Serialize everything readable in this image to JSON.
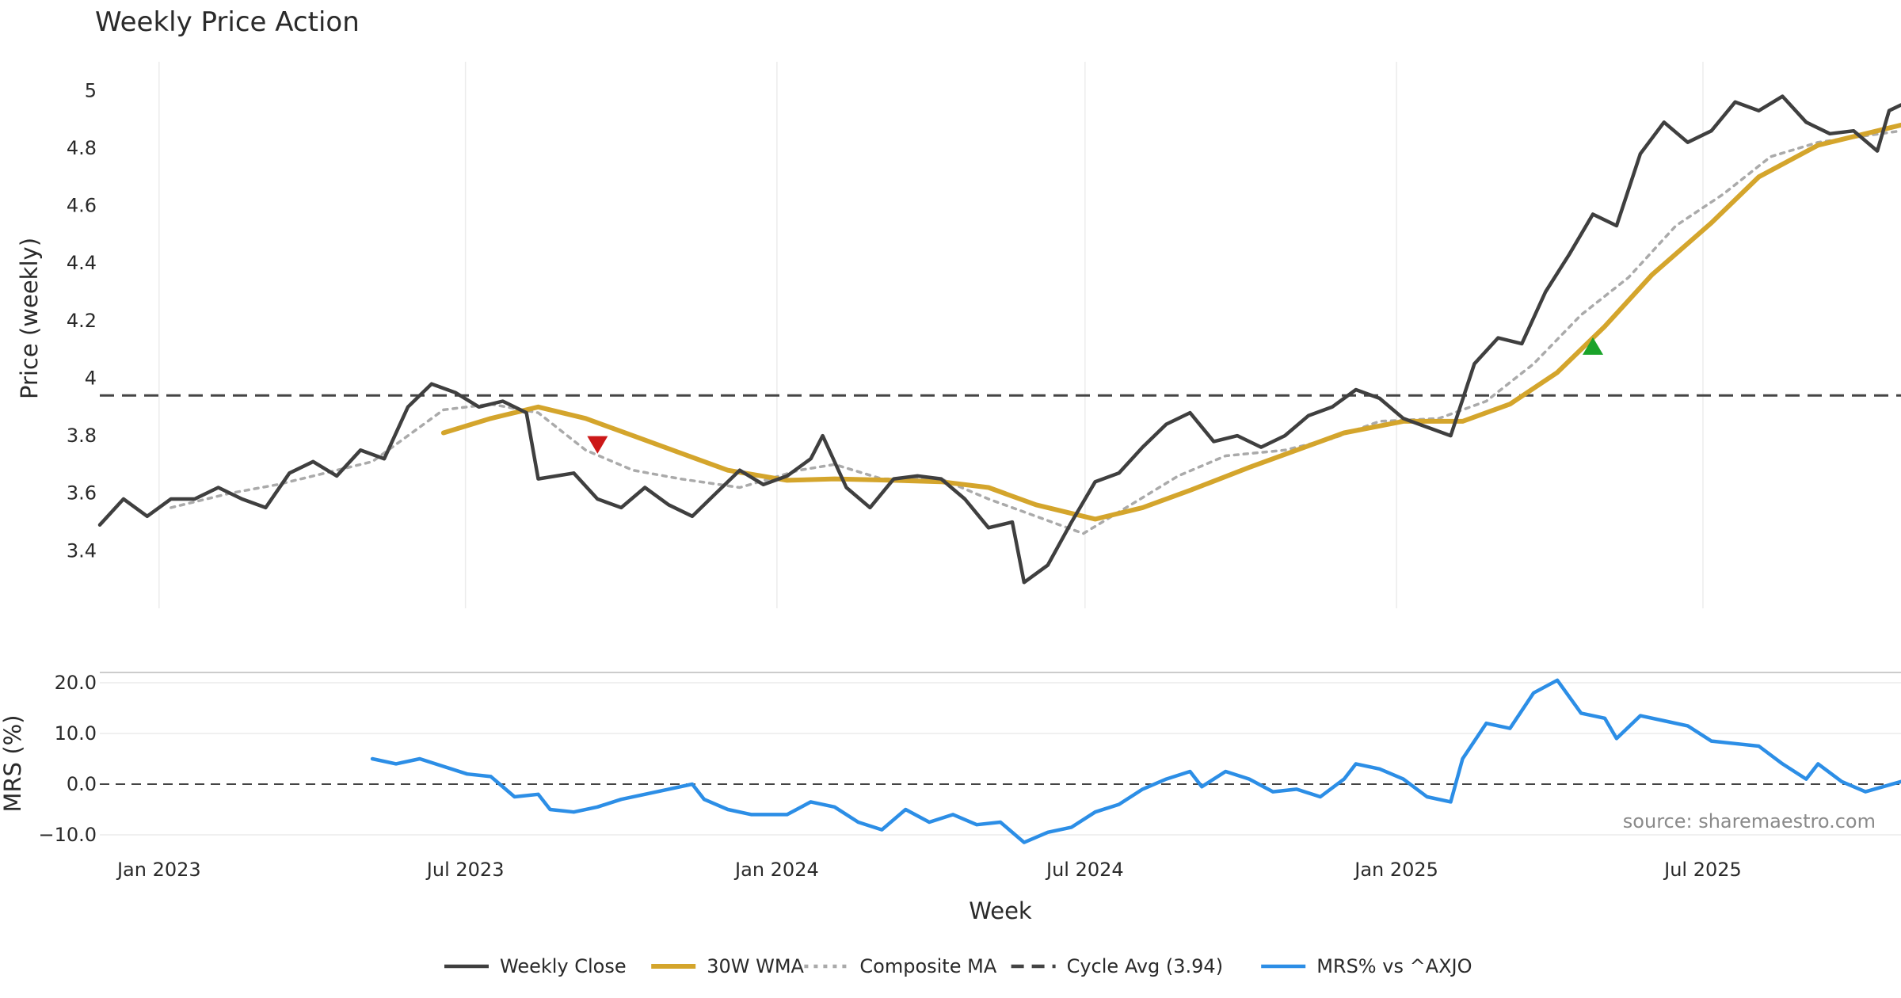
{
  "title": "Weekly Price Action",
  "source_note": "source: sharemaestro.com",
  "colors": {
    "close": "#3f3f3f",
    "wma": "#d4a52c",
    "composite": "#aaaaaa",
    "cycle": "#444444",
    "mrs": "#2c8ee6",
    "sell_marker": "#cc1818",
    "buy_marker": "#1aa32a",
    "grid": "#ececec"
  },
  "chart_data": [
    {
      "type": "line",
      "title": "Weekly Price Action",
      "ylabel": "Price (weekly)",
      "xlabel": "",
      "ylim": [
        3.2,
        5.1
      ],
      "yticks": [
        3.4,
        3.6,
        3.8,
        4,
        4.2,
        4.4,
        4.6,
        4.8,
        5
      ],
      "ytick_labels": [
        "3.4",
        "3.6",
        "3.8",
        "4",
        "4.2",
        "4.4",
        "4.6",
        "4.8",
        "5"
      ],
      "xlim": [
        "2022-11-27",
        "2025-10-26"
      ],
      "grid": "vertical",
      "series": [
        {
          "name": "Weekly Close",
          "style": "solid",
          "points": [
            [
              "2022-11-27",
              3.49
            ],
            [
              "2022-12-11",
              3.58
            ],
            [
              "2022-12-25",
              3.52
            ],
            [
              "2023-01-08",
              3.58
            ],
            [
              "2023-01-22",
              3.58
            ],
            [
              "2023-02-05",
              3.62
            ],
            [
              "2023-02-19",
              3.58
            ],
            [
              "2023-03-05",
              3.55
            ],
            [
              "2023-03-19",
              3.67
            ],
            [
              "2023-04-02",
              3.71
            ],
            [
              "2023-04-16",
              3.66
            ],
            [
              "2023-04-30",
              3.75
            ],
            [
              "2023-05-14",
              3.72
            ],
            [
              "2023-05-28",
              3.9
            ],
            [
              "2023-06-11",
              3.98
            ],
            [
              "2023-06-25",
              3.95
            ],
            [
              "2023-07-09",
              3.9
            ],
            [
              "2023-07-23",
              3.92
            ],
            [
              "2023-08-06",
              3.88
            ],
            [
              "2023-08-13",
              3.65
            ],
            [
              "2023-09-03",
              3.67
            ],
            [
              "2023-09-17",
              3.58
            ],
            [
              "2023-10-01",
              3.55
            ],
            [
              "2023-10-15",
              3.62
            ],
            [
              "2023-10-29",
              3.56
            ],
            [
              "2023-11-12",
              3.52
            ],
            [
              "2023-11-26",
              3.6
            ],
            [
              "2023-12-10",
              3.68
            ],
            [
              "2023-12-24",
              3.63
            ],
            [
              "2024-01-07",
              3.66
            ],
            [
              "2024-01-21",
              3.72
            ],
            [
              "2024-01-28",
              3.8
            ],
            [
              "2024-02-11",
              3.62
            ],
            [
              "2024-02-25",
              3.55
            ],
            [
              "2024-03-10",
              3.65
            ],
            [
              "2024-03-24",
              3.66
            ],
            [
              "2024-04-07",
              3.65
            ],
            [
              "2024-04-21",
              3.58
            ],
            [
              "2024-05-05",
              3.48
            ],
            [
              "2024-05-19",
              3.5
            ],
            [
              "2024-05-26",
              3.29
            ],
            [
              "2024-06-09",
              3.35
            ],
            [
              "2024-06-23",
              3.5
            ],
            [
              "2024-07-07",
              3.64
            ],
            [
              "2024-07-21",
              3.67
            ],
            [
              "2024-08-04",
              3.76
            ],
            [
              "2024-08-18",
              3.84
            ],
            [
              "2024-09-01",
              3.88
            ],
            [
              "2024-09-15",
              3.78
            ],
            [
              "2024-09-29",
              3.8
            ],
            [
              "2024-10-13",
              3.76
            ],
            [
              "2024-10-27",
              3.8
            ],
            [
              "2024-11-10",
              3.87
            ],
            [
              "2024-11-24",
              3.9
            ],
            [
              "2024-12-08",
              3.96
            ],
            [
              "2024-12-22",
              3.93
            ],
            [
              "2025-01-05",
              3.86
            ],
            [
              "2025-01-19",
              3.83
            ],
            [
              "2025-02-02",
              3.8
            ],
            [
              "2025-02-16",
              4.05
            ],
            [
              "2025-03-02",
              4.14
            ],
            [
              "2025-03-16",
              4.12
            ],
            [
              "2025-03-30",
              4.3
            ],
            [
              "2025-04-13",
              4.43
            ],
            [
              "2025-04-27",
              4.57
            ],
            [
              "2025-05-11",
              4.53
            ],
            [
              "2025-05-25",
              4.78
            ],
            [
              "2025-06-08",
              4.89
            ],
            [
              "2025-06-22",
              4.82
            ],
            [
              "2025-07-06",
              4.86
            ],
            [
              "2025-07-20",
              4.96
            ],
            [
              "2025-08-03",
              4.93
            ],
            [
              "2025-08-17",
              4.98
            ],
            [
              "2025-08-31",
              4.89
            ],
            [
              "2025-09-14",
              4.85
            ],
            [
              "2025-09-28",
              4.86
            ],
            [
              "2025-10-12",
              4.79
            ],
            [
              "2025-10-19",
              4.93
            ],
            [
              "2025-10-26",
              4.95
            ]
          ]
        },
        {
          "name": "30W WMA",
          "style": "solid-thick",
          "points": [
            [
              "2023-06-18",
              3.81
            ],
            [
              "2023-07-16",
              3.86
            ],
            [
              "2023-08-13",
              3.9
            ],
            [
              "2023-09-10",
              3.86
            ],
            [
              "2023-10-08",
              3.8
            ],
            [
              "2023-11-05",
              3.74
            ],
            [
              "2023-12-03",
              3.68
            ],
            [
              "2024-01-07",
              3.645
            ],
            [
              "2024-02-04",
              3.65
            ],
            [
              "2024-03-10",
              3.645
            ],
            [
              "2024-04-07",
              3.64
            ],
            [
              "2024-05-05",
              3.62
            ],
            [
              "2024-06-02",
              3.56
            ],
            [
              "2024-07-07",
              3.51
            ],
            [
              "2024-08-04",
              3.55
            ],
            [
              "2024-09-01",
              3.61
            ],
            [
              "2024-10-06",
              3.69
            ],
            [
              "2024-11-03",
              3.75
            ],
            [
              "2024-12-01",
              3.81
            ],
            [
              "2025-01-05",
              3.85
            ],
            [
              "2025-02-09",
              3.85
            ],
            [
              "2025-03-09",
              3.91
            ],
            [
              "2025-04-06",
              4.02
            ],
            [
              "2025-05-04",
              4.18
            ],
            [
              "2025-06-01",
              4.36
            ],
            [
              "2025-07-06",
              4.54
            ],
            [
              "2025-08-03",
              4.7
            ],
            [
              "2025-09-07",
              4.81
            ],
            [
              "2025-10-26",
              4.88
            ]
          ]
        },
        {
          "name": "Composite MA",
          "style": "dotted",
          "points": [
            [
              "2023-01-08",
              3.55
            ],
            [
              "2023-02-12",
              3.6
            ],
            [
              "2023-03-12",
              3.63
            ],
            [
              "2023-04-09",
              3.67
            ],
            [
              "2023-05-07",
              3.71
            ],
            [
              "2023-05-28",
              3.8
            ],
            [
              "2023-06-18",
              3.89
            ],
            [
              "2023-07-16",
              3.91
            ],
            [
              "2023-08-13",
              3.88
            ],
            [
              "2023-09-10",
              3.75
            ],
            [
              "2023-10-08",
              3.68
            ],
            [
              "2023-11-05",
              3.65
            ],
            [
              "2023-12-10",
              3.62
            ],
            [
              "2024-01-14",
              3.68
            ],
            [
              "2024-02-04",
              3.7
            ],
            [
              "2024-03-03",
              3.65
            ],
            [
              "2024-04-07",
              3.65
            ],
            [
              "2024-05-05",
              3.58
            ],
            [
              "2024-06-02",
              3.52
            ],
            [
              "2024-06-30",
              3.46
            ],
            [
              "2024-07-28",
              3.56
            ],
            [
              "2024-08-25",
              3.66
            ],
            [
              "2024-09-22",
              3.73
            ],
            [
              "2024-10-27",
              3.75
            ],
            [
              "2024-11-24",
              3.79
            ],
            [
              "2024-12-22",
              3.85
            ],
            [
              "2025-01-26",
              3.86
            ],
            [
              "2025-02-23",
              3.92
            ],
            [
              "2025-03-23",
              4.05
            ],
            [
              "2025-04-20",
              4.22
            ],
            [
              "2025-05-18",
              4.35
            ],
            [
              "2025-06-15",
              4.53
            ],
            [
              "2025-07-13",
              4.64
            ],
            [
              "2025-08-10",
              4.77
            ],
            [
              "2025-09-07",
              4.82
            ],
            [
              "2025-10-26",
              4.86
            ]
          ]
        },
        {
          "name": "Cycle Avg (3.94)",
          "style": "dashed",
          "value": 3.94
        }
      ],
      "markers": [
        {
          "type": "sell",
          "shape": "triangle-down",
          "x": "2023-09-17",
          "y": 3.77
        },
        {
          "type": "buy",
          "shape": "triangle-up",
          "x": "2025-04-27",
          "y": 4.11
        }
      ]
    },
    {
      "type": "line",
      "title": "",
      "ylabel": "MRS (%)",
      "xlabel": "Week",
      "ylim": [
        -12.5,
        22.5
      ],
      "yticks": [
        -10,
        0,
        10,
        20
      ],
      "ytick_labels": [
        "−10.0",
        "0.0",
        "10.0",
        "20.0"
      ],
      "xticks": [
        "2023-01-01",
        "2023-07-01",
        "2024-01-01",
        "2024-07-01",
        "2025-01-01",
        "2025-07-01"
      ],
      "xtick_labels": [
        "Jan 2023",
        "Jul 2023",
        "Jan 2024",
        "Jul 2024",
        "Jan 2025",
        "Jul 2025"
      ],
      "reference_line": 0,
      "series": [
        {
          "name": "MRS% vs ^AXJO",
          "style": "solid",
          "points": [
            [
              "2023-05-07",
              5.0
            ],
            [
              "2023-05-21",
              4.0
            ],
            [
              "2023-06-04",
              5.0
            ],
            [
              "2023-06-18",
              3.5
            ],
            [
              "2023-07-02",
              2.0
            ],
            [
              "2023-07-16",
              1.5
            ],
            [
              "2023-07-30",
              -2.5
            ],
            [
              "2023-08-13",
              -2.0
            ],
            [
              "2023-08-20",
              -5.0
            ],
            [
              "2023-09-03",
              -5.5
            ],
            [
              "2023-09-17",
              -4.5
            ],
            [
              "2023-10-01",
              -3.0
            ],
            [
              "2023-10-15",
              -2.0
            ],
            [
              "2023-10-29",
              -1.0
            ],
            [
              "2023-11-12",
              0.0
            ],
            [
              "2023-11-19",
              -3.0
            ],
            [
              "2023-12-03",
              -5.0
            ],
            [
              "2023-12-17",
              -6.0
            ],
            [
              "2024-01-07",
              -6.0
            ],
            [
              "2024-01-21",
              -3.5
            ],
            [
              "2024-02-04",
              -4.5
            ],
            [
              "2024-02-18",
              -7.5
            ],
            [
              "2024-03-03",
              -9.0
            ],
            [
              "2024-03-17",
              -5.0
            ],
            [
              "2024-03-31",
              -7.5
            ],
            [
              "2024-04-14",
              -6.0
            ],
            [
              "2024-04-28",
              -8.0
            ],
            [
              "2024-05-12",
              -7.5
            ],
            [
              "2024-05-26",
              -11.5
            ],
            [
              "2024-06-09",
              -9.5
            ],
            [
              "2024-06-23",
              -8.5
            ],
            [
              "2024-07-07",
              -5.5
            ],
            [
              "2024-07-21",
              -4.0
            ],
            [
              "2024-08-04",
              -1.0
            ],
            [
              "2024-08-18",
              1.0
            ],
            [
              "2024-09-01",
              2.5
            ],
            [
              "2024-09-08",
              -0.5
            ],
            [
              "2024-09-22",
              2.5
            ],
            [
              "2024-10-06",
              1.0
            ],
            [
              "2024-10-20",
              -1.5
            ],
            [
              "2024-11-03",
              -1.0
            ],
            [
              "2024-11-17",
              -2.5
            ],
            [
              "2024-12-01",
              1.0
            ],
            [
              "2024-12-08",
              4.0
            ],
            [
              "2024-12-22",
              3.0
            ],
            [
              "2025-01-05",
              1.0
            ],
            [
              "2025-01-19",
              -2.5
            ],
            [
              "2025-02-02",
              -3.5
            ],
            [
              "2025-02-09",
              5.0
            ],
            [
              "2025-02-23",
              12.0
            ],
            [
              "2025-03-09",
              11.0
            ],
            [
              "2025-03-23",
              18.0
            ],
            [
              "2025-04-06",
              20.5
            ],
            [
              "2025-04-20",
              14.0
            ],
            [
              "2025-05-04",
              13.0
            ],
            [
              "2025-05-11",
              9.0
            ],
            [
              "2025-05-25",
              13.5
            ],
            [
              "2025-06-08",
              12.5
            ],
            [
              "2025-06-22",
              11.5
            ],
            [
              "2025-07-06",
              8.5
            ],
            [
              "2025-07-20",
              8.0
            ],
            [
              "2025-08-03",
              7.5
            ],
            [
              "2025-08-17",
              4.0
            ],
            [
              "2025-08-31",
              1.0
            ],
            [
              "2025-09-07",
              4.0
            ],
            [
              "2025-09-21",
              0.5
            ],
            [
              "2025-10-05",
              -1.5
            ],
            [
              "2025-10-26",
              0.5
            ]
          ]
        }
      ]
    }
  ],
  "legend": {
    "placement": "bottom-center",
    "items": [
      {
        "label": "Weekly Close",
        "style": "solid",
        "color_key": "close"
      },
      {
        "label": "30W WMA",
        "style": "solid-thick",
        "color_key": "wma"
      },
      {
        "label": "Composite MA",
        "style": "dotted",
        "color_key": "composite"
      },
      {
        "label": "Cycle Avg (3.94)",
        "style": "dashed",
        "color_key": "cycle"
      },
      {
        "label": "MRS% vs ^AXJO",
        "style": "solid",
        "color_key": "mrs"
      }
    ]
  }
}
